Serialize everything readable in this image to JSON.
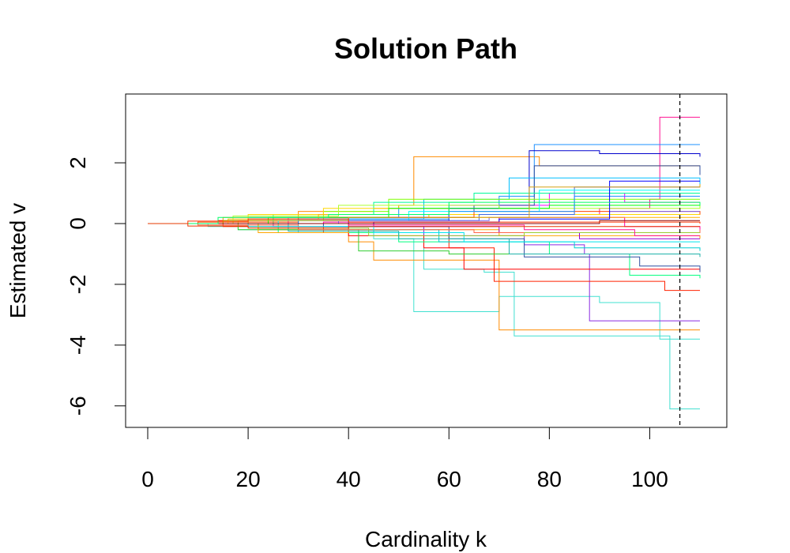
{
  "chart_data": {
    "type": "line",
    "title": "Solution Path",
    "xlabel": "Cardinality k",
    "ylabel": "Estimated v",
    "xlim": [
      0,
      110
    ],
    "ylim": [
      -6.5,
      3.9
    ],
    "xticks": [
      0,
      20,
      40,
      60,
      80,
      100
    ],
    "yticks": [
      -6,
      -4,
      -2,
      0,
      2
    ],
    "xtick_labels": [
      "0",
      "20",
      "40",
      "60",
      "80",
      "100"
    ],
    "ytick_labels": [
      "-6",
      "-4",
      "-2",
      "0",
      "2"
    ],
    "grid": false,
    "legend": "none",
    "reference_line": {
      "x": 106,
      "style": "dashed",
      "color": "#000000"
    },
    "series": [
      {
        "color": "#ff8c00",
        "steps": [
          [
            0,
            0
          ],
          [
            15,
            0.2
          ],
          [
            30,
            0.4
          ],
          [
            45,
            0.5
          ],
          [
            50,
            0.6
          ],
          [
            53,
            2.2
          ],
          [
            75,
            2.2
          ],
          [
            78,
            1.9
          ],
          [
            110,
            1.8
          ]
        ]
      },
      {
        "color": "#40e0d0",
        "steps": [
          [
            0,
            0
          ],
          [
            12,
            -0.1
          ],
          [
            30,
            -0.3
          ],
          [
            45,
            -0.5
          ],
          [
            53,
            -2.9
          ],
          [
            67,
            -2.9
          ],
          [
            70,
            -2.4
          ],
          [
            90,
            -2.6
          ],
          [
            102,
            -3.8
          ],
          [
            110,
            -3.8
          ]
        ]
      },
      {
        "color": "#40e0d0",
        "steps": [
          [
            0,
            0
          ],
          [
            18,
            -0.2
          ],
          [
            40,
            -0.3
          ],
          [
            55,
            -1.5
          ],
          [
            67,
            -1.6
          ],
          [
            73,
            -3.7
          ],
          [
            102,
            -3.7
          ],
          [
            104,
            -6.1
          ],
          [
            110,
            -6.1
          ]
        ]
      },
      {
        "color": "#ff1493",
        "steps": [
          [
            0,
            0
          ],
          [
            20,
            0.1
          ],
          [
            60,
            0.3
          ],
          [
            90,
            0.5
          ],
          [
            100,
            0.8
          ],
          [
            102,
            3.5
          ],
          [
            110,
            3.5
          ]
        ]
      },
      {
        "color": "#1e90ff",
        "steps": [
          [
            0,
            0
          ],
          [
            20,
            0.2
          ],
          [
            50,
            0.5
          ],
          [
            70,
            0.9
          ],
          [
            77,
            2.6
          ],
          [
            110,
            2.6
          ]
        ]
      },
      {
        "color": "#8a2be2",
        "steps": [
          [
            0,
            0
          ],
          [
            25,
            -0.1
          ],
          [
            55,
            -0.4
          ],
          [
            75,
            -0.7
          ],
          [
            87,
            -1.0
          ],
          [
            88,
            -3.2
          ],
          [
            110,
            -3.2
          ]
        ]
      },
      {
        "color": "#0000cd",
        "steps": [
          [
            0,
            0
          ],
          [
            30,
            0.1
          ],
          [
            60,
            0.5
          ],
          [
            76,
            2.4
          ],
          [
            90,
            2.3
          ],
          [
            110,
            2.2
          ]
        ]
      },
      {
        "color": "#ff8c00",
        "steps": [
          [
            0,
            0
          ],
          [
            22,
            -0.2
          ],
          [
            40,
            -0.6
          ],
          [
            45,
            -1.2
          ],
          [
            66,
            -1.2
          ],
          [
            70,
            -3.5
          ],
          [
            110,
            -3.5
          ]
        ]
      },
      {
        "color": "#ff2200",
        "steps": [
          [
            0,
            0
          ],
          [
            15,
            -0.1
          ],
          [
            35,
            -0.3
          ],
          [
            60,
            -0.8
          ],
          [
            69,
            -1.9
          ],
          [
            100,
            -1.9
          ],
          [
            103,
            -2.2
          ],
          [
            110,
            -2.2
          ]
        ]
      },
      {
        "color": "#ff0000",
        "steps": [
          [
            0,
            0
          ],
          [
            14,
            0.1
          ],
          [
            40,
            -0.4
          ],
          [
            55,
            -0.8
          ],
          [
            63,
            -1.5
          ],
          [
            70,
            -1.5
          ],
          [
            110,
            -1.5
          ]
        ]
      },
      {
        "color": "#ff00ff",
        "steps": [
          [
            0,
            0
          ],
          [
            28,
            0.2
          ],
          [
            60,
            0.6
          ],
          [
            80,
            1.0
          ],
          [
            95,
            0.7
          ],
          [
            110,
            0.7
          ]
        ]
      },
      {
        "color": "#00ff7f",
        "steps": [
          [
            0,
            0
          ],
          [
            26,
            -0.3
          ],
          [
            50,
            -0.6
          ],
          [
            80,
            -1.0
          ],
          [
            96,
            -1.7
          ],
          [
            110,
            -1.8
          ]
        ]
      },
      {
        "color": "#00bfff",
        "steps": [
          [
            0,
            0
          ],
          [
            20,
            0.15
          ],
          [
            55,
            0.8
          ],
          [
            72,
            1.5
          ],
          [
            110,
            1.3
          ]
        ]
      },
      {
        "color": "#2f4fa0",
        "steps": [
          [
            0,
            0
          ],
          [
            40,
            0.2
          ],
          [
            65,
            0.6
          ],
          [
            77,
            1.9
          ],
          [
            110,
            1.6
          ]
        ]
      },
      {
        "color": "#2f4fa0",
        "steps": [
          [
            0,
            0
          ],
          [
            35,
            -0.1
          ],
          [
            60,
            -0.5
          ],
          [
            75,
            -1.1
          ],
          [
            98,
            -1.4
          ],
          [
            110,
            -1.6
          ]
        ]
      },
      {
        "color": "#7fff00",
        "steps": [
          [
            0,
            0
          ],
          [
            15,
            0.1
          ],
          [
            35,
            0.4
          ],
          [
            48,
            0.8
          ],
          [
            110,
            0.8
          ]
        ]
      },
      {
        "color": "#32cd32",
        "steps": [
          [
            0,
            0
          ],
          [
            18,
            -0.2
          ],
          [
            42,
            -0.9
          ],
          [
            60,
            -1.0
          ],
          [
            110,
            -1.0
          ]
        ]
      },
      {
        "color": "#00fa9a",
        "steps": [
          [
            0,
            0
          ],
          [
            25,
            0.3
          ],
          [
            45,
            0.7
          ],
          [
            65,
            1.0
          ],
          [
            110,
            1.0
          ]
        ]
      },
      {
        "color": "#ffd700",
        "steps": [
          [
            0,
            0
          ],
          [
            20,
            0.3
          ],
          [
            35,
            0.5
          ],
          [
            60,
            0.3
          ],
          [
            110,
            0.4
          ]
        ]
      },
      {
        "color": "#ffa500",
        "steps": [
          [
            0,
            0
          ],
          [
            22,
            -0.3
          ],
          [
            40,
            -0.2
          ],
          [
            70,
            -0.4
          ],
          [
            110,
            -0.5
          ]
        ]
      },
      {
        "color": "#adff2f",
        "steps": [
          [
            0,
            0
          ],
          [
            17,
            0.25
          ],
          [
            38,
            0.6
          ],
          [
            70,
            0.5
          ],
          [
            110,
            0.6
          ]
        ]
      },
      {
        "color": "#00ced1",
        "steps": [
          [
            0,
            0
          ],
          [
            30,
            -0.2
          ],
          [
            58,
            -0.6
          ],
          [
            85,
            -0.8
          ],
          [
            110,
            -0.9
          ]
        ]
      },
      {
        "color": "#4169e1",
        "steps": [
          [
            0,
            0
          ],
          [
            40,
            0.1
          ],
          [
            66,
            0.3
          ],
          [
            85,
            1.2
          ],
          [
            110,
            1.2
          ]
        ]
      },
      {
        "color": "#9400d3",
        "steps": [
          [
            0,
            0
          ],
          [
            45,
            -0.1
          ],
          [
            70,
            -0.3
          ],
          [
            86,
            -0.5
          ],
          [
            110,
            -0.5
          ]
        ]
      },
      {
        "color": "#ff4500",
        "steps": [
          [
            0,
            0
          ],
          [
            10,
            0.05
          ],
          [
            30,
            0.2
          ],
          [
            65,
            0.4
          ],
          [
            110,
            0.3
          ]
        ]
      },
      {
        "color": "#ff6347",
        "steps": [
          [
            0,
            0
          ],
          [
            10,
            -0.05
          ],
          [
            30,
            -0.2
          ],
          [
            65,
            -0.3
          ],
          [
            110,
            -0.2
          ]
        ]
      },
      {
        "color": "#00ff00",
        "steps": [
          [
            0,
            0
          ],
          [
            24,
            0.2
          ],
          [
            48,
            0.5
          ],
          [
            80,
            0.6
          ],
          [
            110,
            0.7
          ]
        ]
      },
      {
        "color": "#00ffff",
        "steps": [
          [
            0,
            0
          ],
          [
            26,
            0.1
          ],
          [
            52,
            0.4
          ],
          [
            78,
            1.1
          ],
          [
            110,
            1.1
          ]
        ]
      },
      {
        "color": "#ff00aa",
        "steps": [
          [
            0,
            0
          ],
          [
            35,
            0.05
          ],
          [
            70,
            0.2
          ],
          [
            95,
            -0.1
          ],
          [
            110,
            -0.2
          ]
        ]
      },
      {
        "color": "#7b68ee",
        "steps": [
          [
            0,
            0
          ],
          [
            38,
            0.1
          ],
          [
            68,
            0.2
          ],
          [
            92,
            0.4
          ],
          [
            110,
            0.4
          ]
        ]
      },
      {
        "color": "#00e5ee",
        "steps": [
          [
            0,
            0
          ],
          [
            20,
            -0.1
          ],
          [
            45,
            -0.3
          ],
          [
            63,
            -0.6
          ],
          [
            110,
            -0.6
          ]
        ]
      },
      {
        "color": "#ffb000",
        "steps": [
          [
            0,
            0
          ],
          [
            16,
            0.15
          ],
          [
            34,
            0.3
          ],
          [
            56,
            0.2
          ],
          [
            110,
            0.2
          ]
        ]
      },
      {
        "color": "#9acd32",
        "steps": [
          [
            0,
            0
          ],
          [
            22,
            -0.15
          ],
          [
            44,
            -0.4
          ],
          [
            75,
            -0.3
          ],
          [
            110,
            -0.3
          ]
        ]
      },
      {
        "color": "#1e90ff",
        "steps": [
          [
            0,
            0
          ],
          [
            30,
            0.15
          ],
          [
            60,
            0.4
          ],
          [
            85,
            0.9
          ],
          [
            110,
            0.9
          ]
        ]
      },
      {
        "color": "#ff1493",
        "steps": [
          [
            0,
            0
          ],
          [
            40,
            -0.05
          ],
          [
            75,
            -0.2
          ],
          [
            97,
            -0.4
          ],
          [
            110,
            -0.4
          ]
        ]
      },
      {
        "color": "#0000ff",
        "steps": [
          [
            0,
            0
          ],
          [
            45,
            0.05
          ],
          [
            70,
            0.15
          ],
          [
            92,
            1.4
          ],
          [
            110,
            1.4
          ]
        ]
      },
      {
        "color": "#d4a017",
        "steps": [
          [
            0,
            0
          ],
          [
            18,
            0.1
          ],
          [
            40,
            0.2
          ],
          [
            76,
            1.2
          ],
          [
            110,
            1.3
          ]
        ]
      },
      {
        "color": "#20b2aa",
        "steps": [
          [
            0,
            0
          ],
          [
            28,
            -0.25
          ],
          [
            50,
            -0.5
          ],
          [
            72,
            -1.0
          ],
          [
            110,
            -1.1
          ]
        ]
      },
      {
        "color": "#8b0000",
        "steps": [
          [
            0,
            0
          ],
          [
            50,
            0.0
          ],
          [
            90,
            0.1
          ],
          [
            110,
            0.1
          ]
        ]
      },
      {
        "color": "#00ff66",
        "steps": [
          [
            0,
            0
          ],
          [
            14,
            0.2
          ],
          [
            36,
            0.3
          ],
          [
            60,
            0.7
          ],
          [
            110,
            0.6
          ]
        ]
      },
      {
        "color": "#ff3300",
        "steps": [
          [
            0,
            0
          ],
          [
            8,
            0.08
          ],
          [
            20,
            0.15
          ],
          [
            40,
            0.05
          ],
          [
            110,
            0.0
          ]
        ]
      },
      {
        "color": "#e63900",
        "steps": [
          [
            0,
            0
          ],
          [
            8,
            -0.08
          ],
          [
            20,
            -0.15
          ],
          [
            40,
            -0.1
          ],
          [
            110,
            -0.1
          ]
        ]
      }
    ]
  }
}
